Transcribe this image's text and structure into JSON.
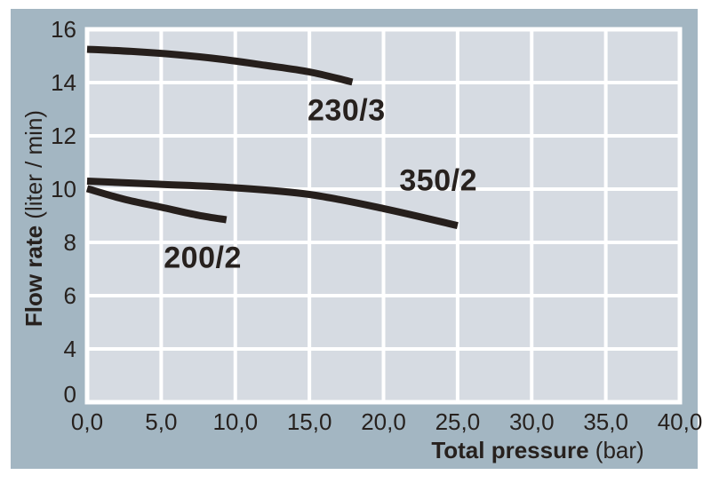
{
  "chart_data": {
    "type": "line",
    "xlabel_bold": "Total pressure",
    "xlabel_unit": " (bar)",
    "ylabel_bold": "Flow rate",
    "ylabel_unit": " (liter / min)",
    "x_axis": {
      "tick_labels": [
        "0,0",
        "5,0",
        "10,0",
        "15,0",
        "20,0",
        "25,0",
        "30,0",
        "35,0",
        "40,0"
      ],
      "values": [
        0,
        5,
        10,
        15,
        20,
        25,
        30,
        35,
        40
      ],
      "max": 40
    },
    "y_axis": {
      "tick_labels": [
        "16",
        "14",
        "12",
        "10",
        "8",
        "6",
        "4",
        "0"
      ],
      "top_value": 16,
      "units_per_step": 2,
      "steps": 7,
      "note": "tick labels evenly spaced; bottom gridline labeled 0"
    },
    "grid": true,
    "legend_position": "inline-labels",
    "series": [
      {
        "name": "230/3",
        "points": [
          [
            0,
            15.25
          ],
          [
            3,
            15.17
          ],
          [
            6,
            15.05
          ],
          [
            9,
            14.88
          ],
          [
            12,
            14.65
          ],
          [
            15,
            14.4
          ],
          [
            17.9,
            14.02
          ]
        ]
      },
      {
        "name": "350/2",
        "points": [
          [
            0,
            10.3
          ],
          [
            5,
            10.18
          ],
          [
            10,
            10.05
          ],
          [
            15,
            9.8
          ],
          [
            20,
            9.27
          ],
          [
            25,
            8.63
          ]
        ]
      },
      {
        "name": "200/2",
        "points": [
          [
            0,
            10.02
          ],
          [
            2.5,
            9.62
          ],
          [
            5,
            9.32
          ],
          [
            7.5,
            9.02
          ],
          [
            9.4,
            8.85
          ]
        ]
      }
    ],
    "annotations": [
      {
        "text": "230/3",
        "x": 17.5,
        "y": 12.95
      },
      {
        "text": "350/2",
        "x": 23.7,
        "y": 10.3
      },
      {
        "text": "200/2",
        "x": 7.8,
        "y": 7.4
      }
    ],
    "colors": {
      "panel": "#a3b6c2",
      "plot_bg": "#d6dbe2",
      "grid": "#ffffff",
      "curve": "#261f1c",
      "text": "#27211e"
    }
  }
}
